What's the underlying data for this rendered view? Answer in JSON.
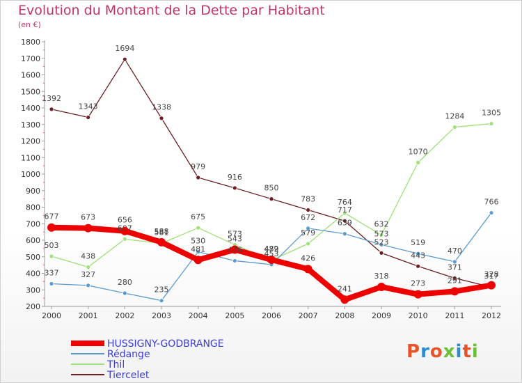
{
  "title": "Evolution du Montant de la Dette par Habitant",
  "subtitle": "(en €)",
  "logo": {
    "text": "Proxiti",
    "colors": [
      "#e8542a",
      "#2d8bd0",
      "#e8542a",
      "#6cbf3a",
      "#2d8bd0",
      "#e8542a",
      "#6cbf3a"
    ]
  },
  "chart_data": {
    "type": "line",
    "x": [
      "2000",
      "2001",
      "2002",
      "2003",
      "2004",
      "2005",
      "2006",
      "2007",
      "2008",
      "2009",
      "2010",
      "2011",
      "2012"
    ],
    "ylim": [
      200,
      1800
    ],
    "yticks": [
      "200",
      "300",
      "400",
      "500",
      "600",
      "700",
      "800",
      "900",
      "1000",
      "1100",
      "1200",
      "1300",
      "1400",
      "1500",
      "1600",
      "1700",
      "1800"
    ],
    "xlabel": "",
    "ylabel": "",
    "grid": false,
    "legend_position": "bottom-left",
    "series": [
      {
        "name": "Tiercelet",
        "color": "#6b1f24",
        "values": [
          1392,
          1343,
          1694,
          1338,
          979,
          916,
          850,
          783,
          717,
          523,
          443,
          371,
          317
        ],
        "labels": [
          "1392",
          "1343",
          "1694",
          "1338",
          "979",
          "916",
          "850",
          "783",
          "717",
          "523",
          "443",
          "371",
          "317"
        ]
      },
      {
        "name": "Thil",
        "color": "#9ee07a",
        "values": [
          503,
          438,
          607,
          581,
          675,
          573,
          479,
          579,
          764,
          632,
          1070,
          1284,
          1305
        ],
        "labels": [
          "503",
          "438",
          "607",
          "581",
          "675",
          "573",
          "479",
          "579",
          "764",
          "632",
          "1070",
          "1284",
          "1305"
        ]
      },
      {
        "name": "Rédange",
        "color": "#5b9bcf",
        "values": [
          337,
          327,
          280,
          235,
          530,
          476,
          453,
          672,
          639,
          573,
          519,
          470,
          766
        ],
        "labels": [
          "337",
          "327",
          "280",
          "235",
          "530",
          "476",
          "453",
          "672",
          "639",
          "573",
          "519",
          "470",
          "766"
        ]
      },
      {
        "name": "HUSSIGNY-GODBRANGE",
        "color": "#ee0000",
        "values": [
          677,
          673,
          656,
          588,
          481,
          543,
          482,
          426,
          241,
          318,
          273,
          291,
          328
        ],
        "labels": [
          "677",
          "673",
          "656",
          "588",
          "481",
          "543",
          "482",
          "426",
          "241",
          "318",
          "273",
          "291",
          "328"
        ]
      }
    ],
    "legend": [
      {
        "name": "HUSSIGNY-GODBRANGE",
        "color": "#ee0000",
        "text_color": "#3b3bd6"
      },
      {
        "name": "Rédange",
        "color": "#5b9bcf",
        "text_color": "#3b3bd6"
      },
      {
        "name": "Thil",
        "color": "#9ee07a",
        "text_color": "#3b3bd6"
      },
      {
        "name": "Tiercelet",
        "color": "#6b1f24",
        "text_color": "#3b3bd6"
      }
    ]
  }
}
